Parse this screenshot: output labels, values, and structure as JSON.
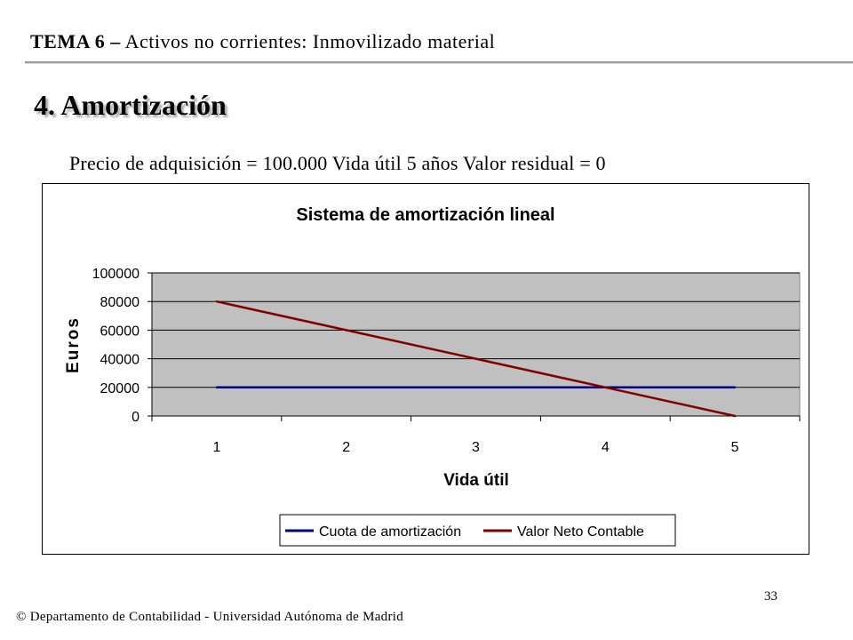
{
  "header": {
    "topic_bold": "TEMA 6 –",
    "topic_rest": "Activos no corrientes: Inmovilizado material"
  },
  "section_title": "4. Amortización",
  "subtitle": "Precio de adquisición  = 100.000   Vida útil 5 años  Valor residual = 0",
  "chart_data": {
    "type": "line",
    "title": "Sistema de amortización lineal",
    "xlabel": "Vida útil",
    "ylabel": "Euros",
    "categories": [
      "1",
      "2",
      "3",
      "4",
      "5"
    ],
    "ylim": [
      0,
      100000
    ],
    "yticks": [
      "100000",
      "80000",
      "60000",
      "40000",
      "20000",
      "0"
    ],
    "grid": true,
    "legend_position": "bottom",
    "plot_background": "#c0c0c0",
    "series": [
      {
        "name": "Cuota de amortización",
        "values": [
          20000,
          20000,
          20000,
          20000,
          20000
        ],
        "color": "#000080"
      },
      {
        "name": "Valor Neto Contable",
        "values": [
          80000,
          60000,
          40000,
          20000,
          0
        ],
        "color": "#800000"
      }
    ]
  },
  "footer": "© Departamento de Contabilidad - Universidad Autónoma de Madrid",
  "page_number": "33"
}
